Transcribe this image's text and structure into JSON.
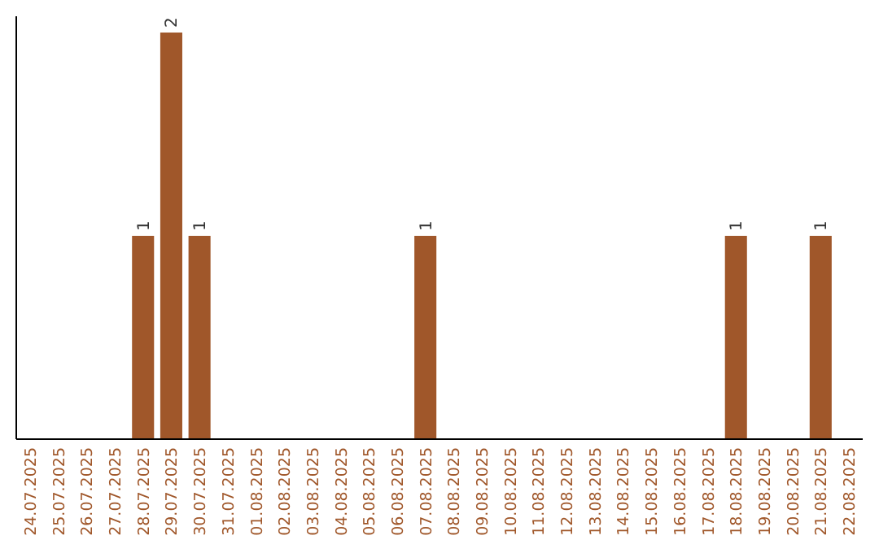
{
  "chart_data": {
    "type": "bar",
    "categories": [
      "24.07.2025",
      "25.07.2025",
      "26.07.2025",
      "27.07.2025",
      "28.07.2025",
      "29.07.2025",
      "30.07.2025",
      "31.07.2025",
      "01.08.2025",
      "02.08.2025",
      "03.08.2025",
      "04.08.2025",
      "05.08.2025",
      "06.08.2025",
      "07.08.2025",
      "08.08.2025",
      "09.08.2025",
      "10.08.2025",
      "11.08.2025",
      "12.08.2025",
      "13.08.2025",
      "14.08.2025",
      "15.08.2025",
      "16.08.2025",
      "17.08.2025",
      "18.08.2025",
      "19.08.2025",
      "20.08.2025",
      "21.08.2025",
      "22.08.2025"
    ],
    "values": [
      0,
      0,
      0,
      0,
      1,
      2,
      1,
      0,
      0,
      0,
      0,
      0,
      0,
      0,
      1,
      0,
      0,
      0,
      0,
      0,
      0,
      0,
      0,
      0,
      0,
      1,
      0,
      0,
      1,
      0
    ],
    "value_labels": [
      null,
      null,
      null,
      null,
      "1",
      "2",
      "1",
      null,
      null,
      null,
      null,
      null,
      null,
      null,
      "1",
      null,
      null,
      null,
      null,
      null,
      null,
      null,
      null,
      null,
      null,
      "1",
      null,
      null,
      "1",
      null
    ],
    "color": "#a0572a",
    "ylim": [
      0,
      2
    ],
    "tick_labels": "x"
  }
}
